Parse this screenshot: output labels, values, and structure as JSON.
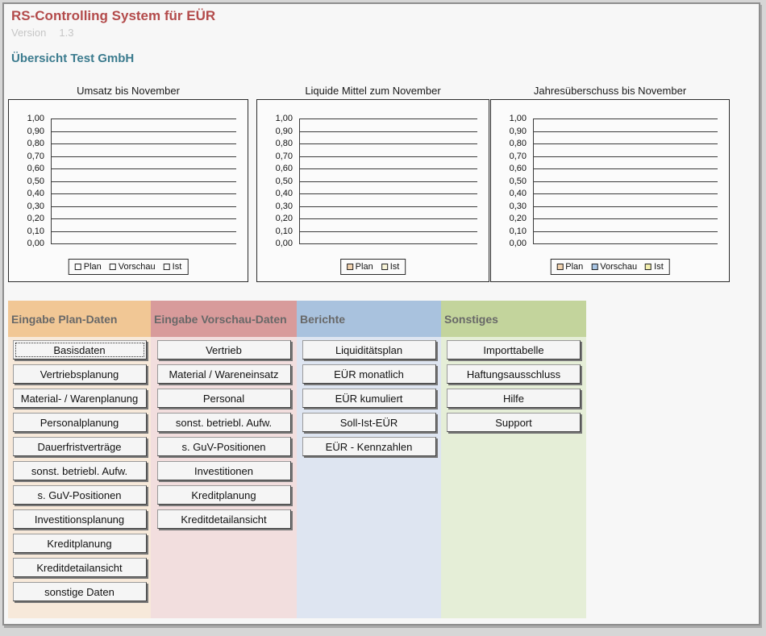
{
  "header": {
    "app_title": "RS-Controlling System für EÜR",
    "version_label": "Version",
    "version_value": "1.3",
    "page_title": "Übersicht Test GmbH",
    "title_color": "#b34b4b",
    "page_title_color": "#3b7b8e"
  },
  "charts": [
    {
      "title": "Umsatz bis November",
      "y_ticks": [
        "1,00",
        "0,90",
        "0,80",
        "0,70",
        "0,60",
        "0,50",
        "0,40",
        "0,30",
        "0,20",
        "0,10",
        "0,00"
      ],
      "legend": [
        {
          "label": "Plan",
          "color": "#fdfdfd"
        },
        {
          "label": "Vorschau",
          "color": "#fdfdfd"
        },
        {
          "label": "Ist",
          "color": "#fdfdfd"
        }
      ]
    },
    {
      "title": "Liquide Mittel zum November",
      "y_ticks": [
        "1,00",
        "0,90",
        "0,80",
        "0,70",
        "0,60",
        "0,50",
        "0,40",
        "0,30",
        "0,20",
        "0,10",
        "0,00"
      ],
      "legend": [
        {
          "label": "Plan",
          "color": "#f2d3b0"
        },
        {
          "label": "Ist",
          "color": "#f8f4d8"
        }
      ]
    },
    {
      "title": "Jahresüberschuss bis November",
      "y_ticks": [
        "1,00",
        "0,90",
        "0,80",
        "0,70",
        "0,60",
        "0,50",
        "0,40",
        "0,30",
        "0,20",
        "0,10",
        "0,00"
      ],
      "legend": [
        {
          "label": "Plan",
          "color": "#f2d3b0"
        },
        {
          "label": "Vorschau",
          "color": "#a9c6e5"
        },
        {
          "label": "Ist",
          "color": "#f3efae"
        }
      ]
    }
  ],
  "chart_data": [
    {
      "type": "bar",
      "title": "Umsatz bis November",
      "ylim": [
        0,
        1
      ],
      "ytick_step": 0.1,
      "categories": [],
      "series": [
        {
          "name": "Plan",
          "values": []
        },
        {
          "name": "Vorschau",
          "values": []
        },
        {
          "name": "Ist",
          "values": []
        }
      ],
      "legend_position": "bottom",
      "grid": true
    },
    {
      "type": "bar",
      "title": "Liquide Mittel zum November",
      "ylim": [
        0,
        1
      ],
      "ytick_step": 0.1,
      "categories": [],
      "series": [
        {
          "name": "Plan",
          "values": []
        },
        {
          "name": "Ist",
          "values": []
        }
      ],
      "legend_position": "bottom",
      "grid": true
    },
    {
      "type": "bar",
      "title": "Jahresüberschuss bis November",
      "ylim": [
        0,
        1
      ],
      "ytick_step": 0.1,
      "categories": [],
      "series": [
        {
          "name": "Plan",
          "values": []
        },
        {
          "name": "Vorschau",
          "values": []
        },
        {
          "name": "Ist",
          "values": []
        }
      ],
      "legend_position": "bottom",
      "grid": true
    }
  ],
  "menu_columns": [
    {
      "label": "Eingabe Plan-Daten",
      "header_color": "#f1c795",
      "body_color": "#f7e9da",
      "focused_button": "Basisdaten",
      "buttons": [
        "Basisdaten",
        "Vertriebsplanung",
        "Material- / Warenplanung",
        "Personalplanung",
        "Dauerfristverträge",
        "sonst. betriebl. Aufw.",
        "s. GuV-Positionen",
        "Investitionsplanung",
        "Kreditplanung",
        "Kreditdetailansicht",
        "sonstige Daten"
      ]
    },
    {
      "label": "Eingabe Vorschau-Daten",
      "header_color": "#d89b9b",
      "body_color": "#f2dede",
      "buttons": [
        "Vertrieb",
        "Material / Wareneinsatz",
        "Personal",
        "sonst. betriebl. Aufw.",
        "s. GuV-Positionen",
        "Investitionen",
        "Kreditplanung",
        "Kreditdetailansicht"
      ]
    },
    {
      "label": "Berichte",
      "header_color": "#a9c2de",
      "body_color": "#dee5f1",
      "buttons": [
        "Liquiditätsplan",
        "EÜR monatlich",
        "EÜR kumuliert",
        "Soll-Ist-EÜR",
        "EÜR - Kennzahlen"
      ]
    },
    {
      "label": "Sonstiges",
      "header_color": "#c3d49c",
      "body_color": "#e5eed7",
      "buttons": [
        "Importtabelle",
        "Haftungsausschluss",
        "Hilfe",
        "Support"
      ]
    }
  ]
}
